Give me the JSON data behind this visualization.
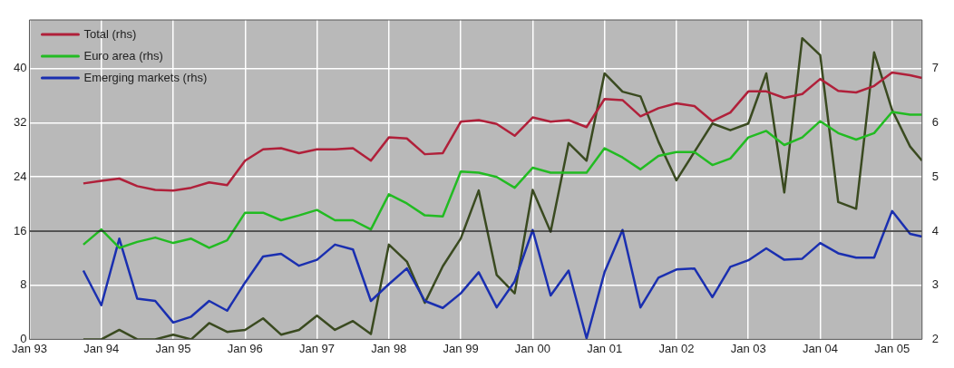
{
  "chart_data": {
    "type": "line",
    "x": [
      "1993-10",
      "1994-01",
      "1994-04",
      "1994-07",
      "1994-10",
      "1995-01",
      "1995-04",
      "1995-07",
      "1995-10",
      "1996-01",
      "1996-04",
      "1996-07",
      "1996-10",
      "1997-01",
      "1997-04",
      "1997-07",
      "1997-10",
      "1998-01",
      "1998-04",
      "1998-07",
      "1998-10",
      "1999-01",
      "1999-04",
      "1999-07",
      "1999-10",
      "2000-01",
      "2000-04",
      "2000-07",
      "2000-10",
      "2001-01",
      "2001-04",
      "2001-07",
      "2001-10",
      "2002-01",
      "2002-04",
      "2002-07",
      "2002-10",
      "2003-01",
      "2003-04",
      "2003-07",
      "2003-10",
      "2004-01",
      "2004-04",
      "2004-07",
      "2004-10",
      "2005-01",
      "2005-04",
      "2005-06"
    ],
    "series": [
      {
        "name": "Total (rhs)",
        "color": "#b0203a",
        "axis": "y2",
        "values": [
          4.88,
          4.93,
          4.97,
          4.83,
          4.76,
          4.75,
          4.8,
          4.9,
          4.85,
          5.3,
          5.51,
          5.53,
          5.44,
          5.51,
          5.51,
          5.53,
          5.3,
          5.73,
          5.71,
          5.42,
          5.44,
          6.02,
          6.05,
          5.98,
          5.76,
          6.1,
          6.02,
          6.05,
          5.92,
          6.44,
          6.42,
          6.12,
          6.27,
          6.36,
          6.31,
          6.03,
          6.19,
          6.58,
          6.58,
          6.46,
          6.53,
          6.81,
          6.59,
          6.56,
          6.68,
          6.93,
          6.88,
          6.83
        ]
      },
      {
        "name": "Euro area (rhs)",
        "color": "#22bb22",
        "axis": "y2",
        "values": [
          3.75,
          4.03,
          3.69,
          3.8,
          3.88,
          3.78,
          3.86,
          3.69,
          3.83,
          4.34,
          4.34,
          4.2,
          4.29,
          4.39,
          4.2,
          4.2,
          4.03,
          4.68,
          4.51,
          4.29,
          4.27,
          5.1,
          5.08,
          5,
          4.8,
          5.17,
          5.08,
          5.08,
          5.08,
          5.53,
          5.36,
          5.14,
          5.39,
          5.46,
          5.46,
          5.22,
          5.34,
          5.73,
          5.85,
          5.59,
          5.73,
          6.03,
          5.81,
          5.69,
          5.81,
          6.2,
          6.15,
          6.15
        ]
      },
      {
        "name": "Emerging markets (rhs)",
        "color": "#1a2fb0",
        "axis": "y2",
        "values": [
          3.27,
          2.63,
          3.86,
          2.75,
          2.71,
          2.31,
          2.42,
          2.71,
          2.53,
          3.05,
          3.53,
          3.58,
          3.36,
          3.47,
          3.75,
          3.66,
          2.71,
          3.02,
          3.31,
          2.71,
          2.58,
          2.85,
          3.24,
          2.59,
          3.07,
          4.02,
          2.81,
          3.27,
          2.02,
          3.24,
          4.02,
          2.59,
          3.14,
          3.29,
          3.31,
          2.78,
          3.34,
          3.46,
          3.68,
          3.47,
          3.49,
          3.78,
          3.59,
          3.51,
          3.51,
          4.37,
          3.95,
          3.9
        ]
      },
      {
        "color": "#3a4a20",
        "axis": "y",
        "values": [
          0,
          0,
          1.4,
          0,
          0,
          0.7,
          0,
          2.4,
          1.1,
          1.4,
          3.1,
          0.7,
          1.4,
          3.5,
          1.4,
          2.7,
          0.8,
          14,
          11.5,
          5.4,
          10.8,
          14.9,
          22,
          9.5,
          6.8,
          22.1,
          15.9,
          29,
          26.4,
          39.3,
          36.6,
          35.9,
          29.2,
          23.5,
          27.7,
          31.9,
          30.9,
          31.9,
          39.3,
          21.7,
          44.5,
          42,
          20.3,
          19.3,
          42.4,
          33.9,
          28.5,
          26.4
        ]
      }
    ],
    "xlim": [
      "1993-01",
      "2005-06"
    ],
    "xticks": [
      {
        "value": "1993-01",
        "label": "Jan 93"
      },
      {
        "value": "1994-01",
        "label": "Jan 94"
      },
      {
        "value": "1995-01",
        "label": "Jan 95"
      },
      {
        "value": "1996-01",
        "label": "Jan 96"
      },
      {
        "value": "1997-01",
        "label": "Jan 97"
      },
      {
        "value": "1998-01",
        "label": "Jan 98"
      },
      {
        "value": "1999-01",
        "label": "Jan 99"
      },
      {
        "value": "2000-01",
        "label": "Jan 00"
      },
      {
        "value": "2001-01",
        "label": "Jan 01"
      },
      {
        "value": "2002-01",
        "label": "Jan 02"
      },
      {
        "value": "2003-01",
        "label": "Jan 03"
      },
      {
        "value": "2004-01",
        "label": "Jan 04"
      },
      {
        "value": "2005-01",
        "label": "Jan 05"
      }
    ],
    "ylim": [
      0,
      47.2
    ],
    "yticks": [
      0,
      8,
      16,
      24,
      32,
      40
    ],
    "y2lim": [
      2,
      7.9
    ],
    "y2ticks": [
      2,
      3,
      4,
      5,
      6,
      7
    ],
    "ref_lines": [
      {
        "axis": "y",
        "value": 16,
        "color": "#222222"
      }
    ],
    "grid": true,
    "legend": "top left"
  }
}
